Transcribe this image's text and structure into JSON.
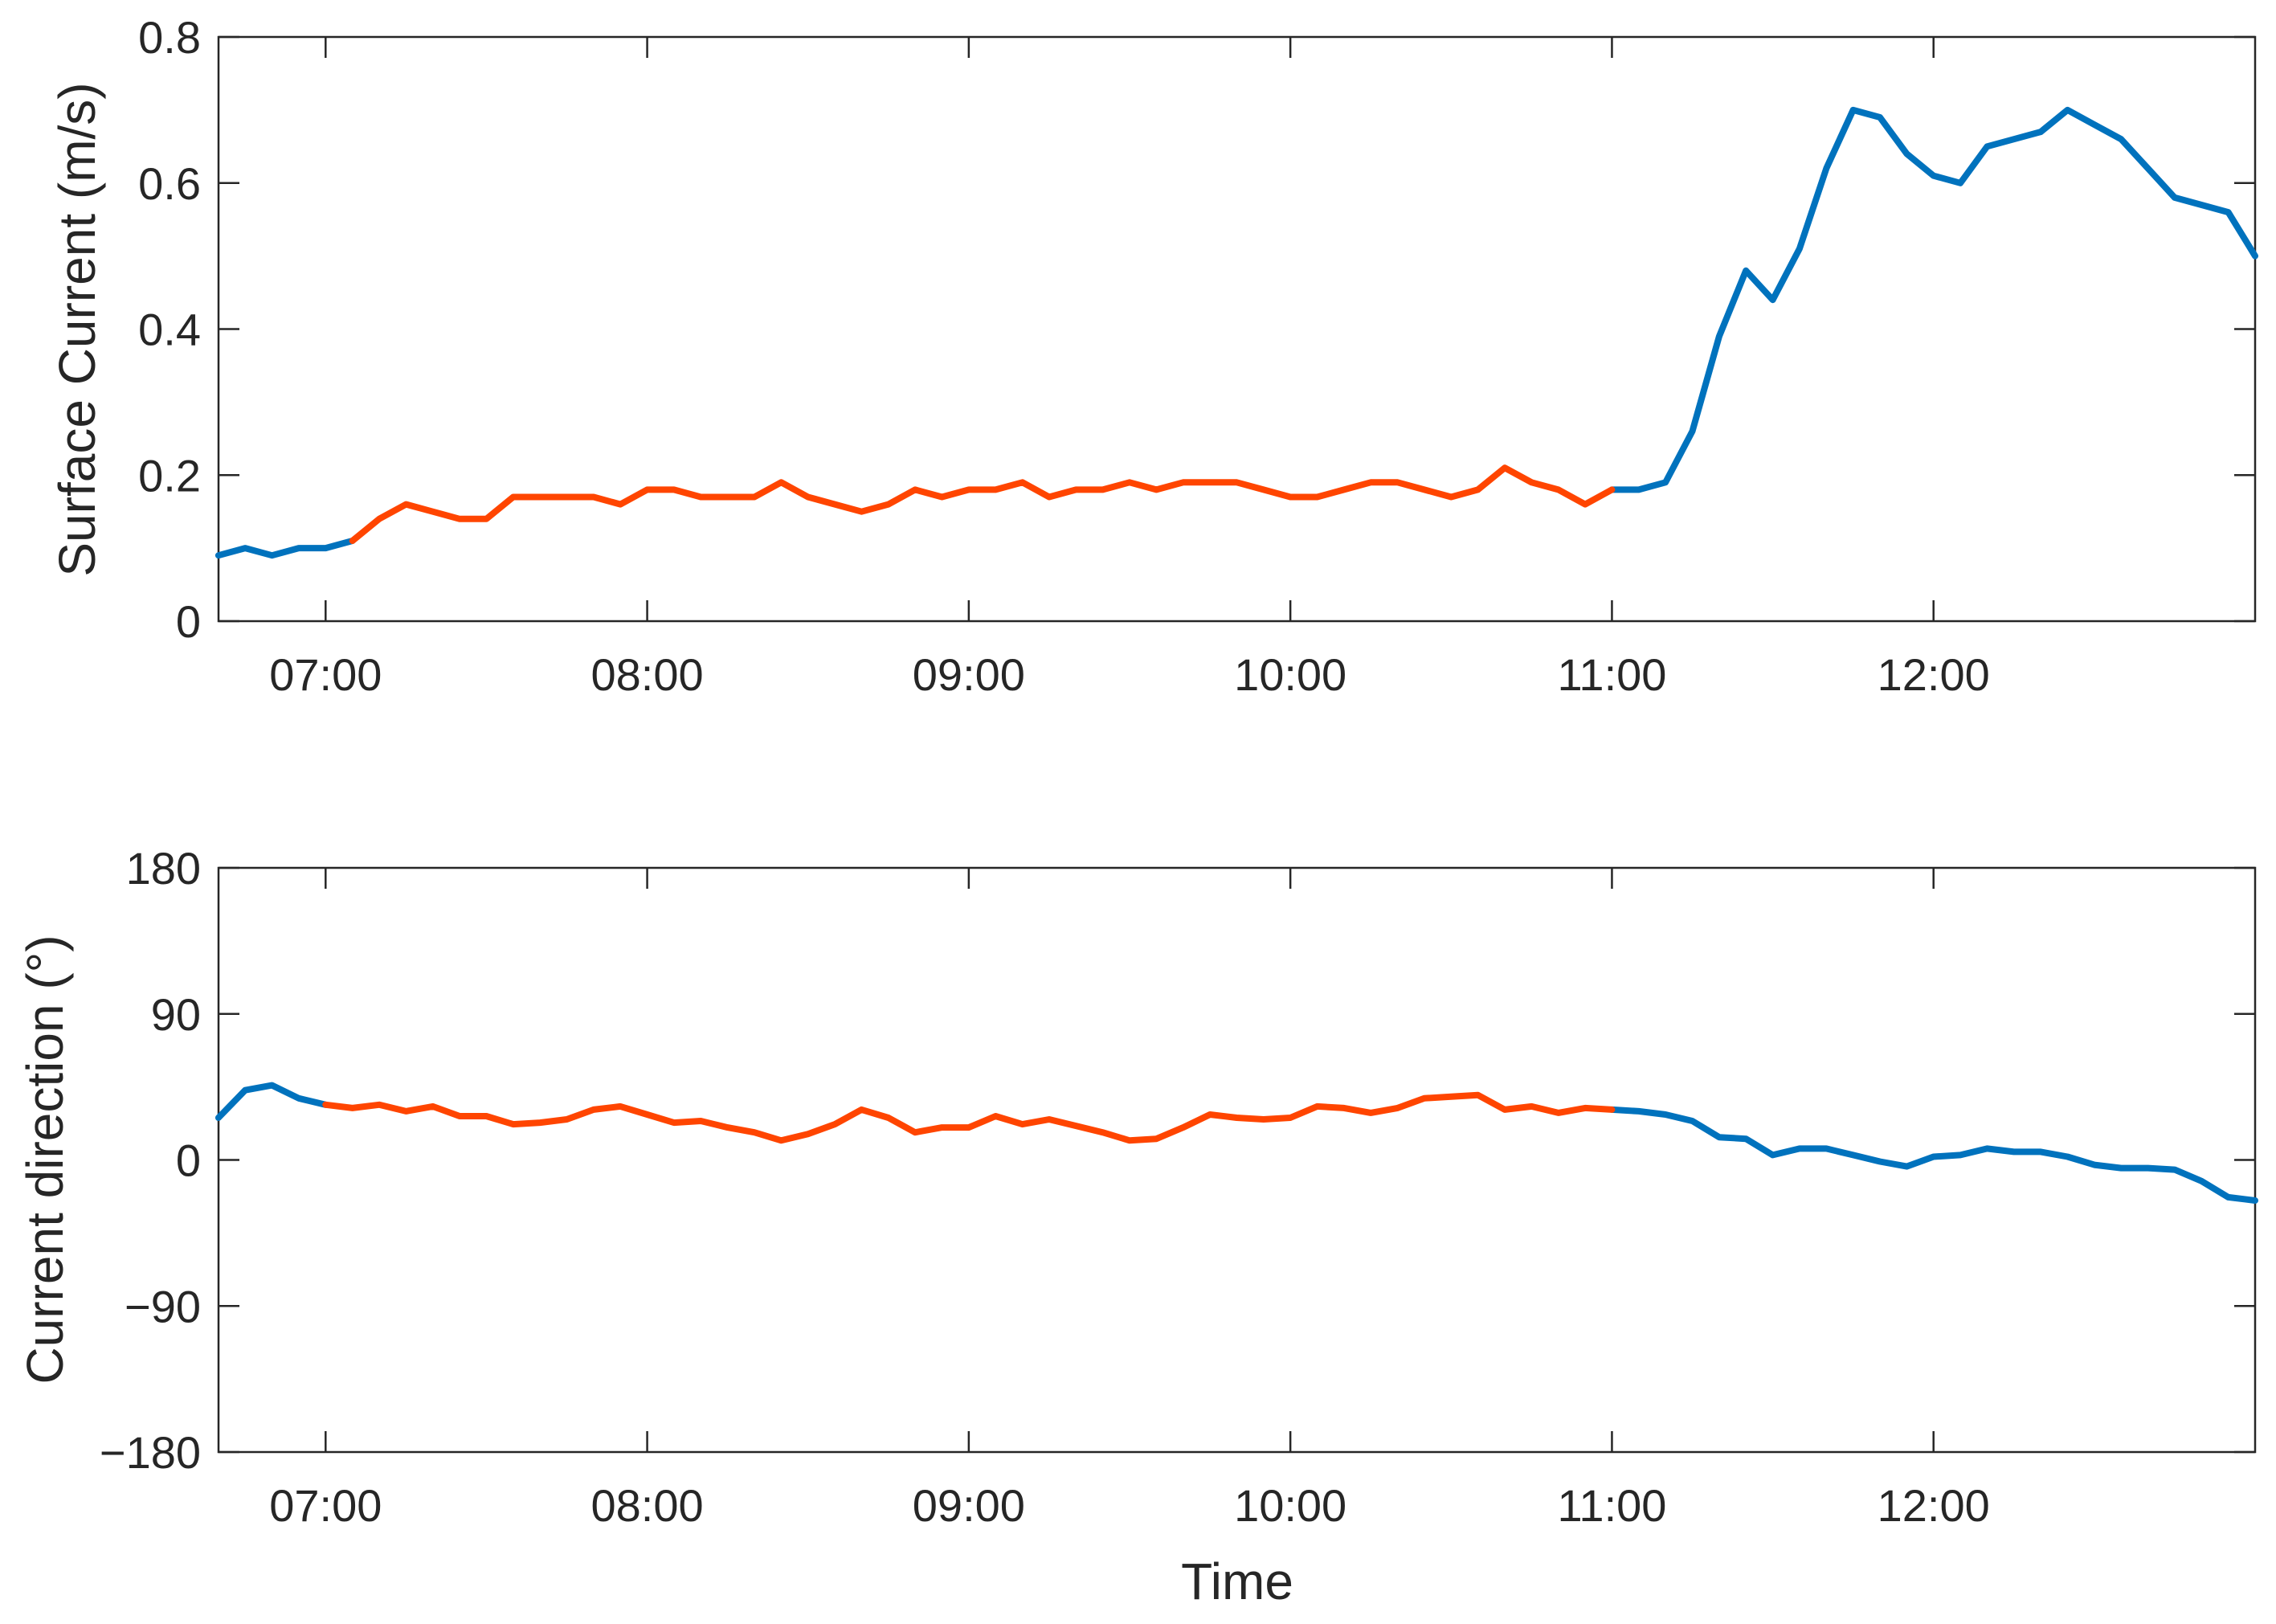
{
  "colors": {
    "outside": "#0072BD",
    "inside": "#FF4500",
    "axis": "#262626"
  },
  "xaxis": {
    "label": "Time",
    "ticks": [
      "07:00",
      "08:00",
      "09:00",
      "10:00",
      "11:00",
      "12:00"
    ],
    "tick_values_h": [
      7,
      8,
      9,
      10,
      11,
      12
    ],
    "xlim_h": [
      6.667,
      13.0
    ]
  },
  "chart_data": [
    {
      "type": "line",
      "ylabel": "Surface Current (m/s)",
      "ylim": [
        0,
        0.8
      ],
      "yticks": [
        0,
        0.2,
        0.4,
        0.6,
        0.8
      ],
      "ytick_labels": [
        "0",
        "0.2",
        "0.4",
        "0.6",
        "0.8"
      ],
      "grid": false,
      "highlight_range": [
        "07:05",
        "11:00"
      ],
      "x": [
        "06:40",
        "06:45",
        "06:50",
        "06:55",
        "07:00",
        "07:05",
        "07:10",
        "07:15",
        "07:20",
        "07:25",
        "07:30",
        "07:35",
        "07:40",
        "07:45",
        "07:50",
        "07:55",
        "08:00",
        "08:05",
        "08:10",
        "08:15",
        "08:20",
        "08:25",
        "08:30",
        "08:35",
        "08:40",
        "08:45",
        "08:50",
        "08:55",
        "09:00",
        "09:05",
        "09:10",
        "09:15",
        "09:20",
        "09:25",
        "09:30",
        "09:35",
        "09:40",
        "09:45",
        "09:50",
        "09:55",
        "10:00",
        "10:05",
        "10:10",
        "10:15",
        "10:20",
        "10:25",
        "10:30",
        "10:35",
        "10:40",
        "10:45",
        "10:50",
        "10:55",
        "11:00",
        "11:05",
        "11:10",
        "11:15",
        "11:20",
        "11:25",
        "11:30",
        "11:35",
        "11:40",
        "11:45",
        "11:50",
        "11:55",
        "12:00",
        "12:05",
        "12:10",
        "12:15",
        "12:20",
        "12:25",
        "12:30",
        "12:35",
        "12:40",
        "12:45",
        "12:50",
        "12:55",
        "13:00"
      ],
      "y": [
        0.09,
        0.1,
        0.09,
        0.1,
        0.1,
        0.11,
        0.14,
        0.16,
        0.15,
        0.14,
        0.14,
        0.17,
        0.17,
        0.17,
        0.17,
        0.16,
        0.18,
        0.18,
        0.17,
        0.17,
        0.17,
        0.19,
        0.17,
        0.16,
        0.15,
        0.16,
        0.18,
        0.17,
        0.18,
        0.18,
        0.19,
        0.17,
        0.18,
        0.18,
        0.19,
        0.18,
        0.19,
        0.19,
        0.19,
        0.18,
        0.17,
        0.17,
        0.18,
        0.19,
        0.19,
        0.18,
        0.17,
        0.18,
        0.21,
        0.19,
        0.18,
        0.16,
        0.18,
        0.18,
        0.19,
        0.26,
        0.39,
        0.48,
        0.44,
        0.51,
        0.62,
        0.7,
        0.69,
        0.64,
        0.61,
        0.6,
        0.65,
        0.66,
        0.67,
        0.7,
        0.68,
        0.66,
        0.62,
        0.58,
        0.57,
        0.56,
        0.5
      ]
    },
    {
      "type": "line",
      "ylabel": "Current direction (°)",
      "ylim": [
        -180,
        180
      ],
      "yticks": [
        -180,
        -90,
        0,
        90,
        180
      ],
      "ytick_labels": [
        "−180",
        "−90",
        "0",
        "90",
        "180"
      ],
      "grid": false,
      "highlight_range": [
        "07:00",
        "11:00"
      ],
      "x": [
        "06:40",
        "06:45",
        "06:50",
        "06:55",
        "07:00",
        "07:05",
        "07:10",
        "07:15",
        "07:20",
        "07:25",
        "07:30",
        "07:35",
        "07:40",
        "07:45",
        "07:50",
        "07:55",
        "08:00",
        "08:05",
        "08:10",
        "08:15",
        "08:20",
        "08:25",
        "08:30",
        "08:35",
        "08:40",
        "08:45",
        "08:50",
        "08:55",
        "09:00",
        "09:05",
        "09:10",
        "09:15",
        "09:20",
        "09:25",
        "09:30",
        "09:35",
        "09:40",
        "09:45",
        "09:50",
        "09:55",
        "10:00",
        "10:05",
        "10:10",
        "10:15",
        "10:20",
        "10:25",
        "10:30",
        "10:35",
        "10:40",
        "10:45",
        "10:50",
        "10:55",
        "11:00",
        "11:05",
        "11:10",
        "11:15",
        "11:20",
        "11:25",
        "11:30",
        "11:35",
        "11:40",
        "11:45",
        "11:50",
        "11:55",
        "12:00",
        "12:05",
        "12:10",
        "12:15",
        "12:20",
        "12:25",
        "12:30",
        "12:35",
        "12:40",
        "12:45",
        "12:50",
        "12:55",
        "13:00"
      ],
      "y": [
        26,
        43,
        46,
        38,
        34,
        32,
        34,
        30,
        33,
        27,
        27,
        22,
        23,
        25,
        31,
        33,
        28,
        23,
        24,
        20,
        17,
        12,
        16,
        22,
        31,
        26,
        17,
        20,
        20,
        27,
        22,
        25,
        21,
        17,
        12,
        13,
        20,
        28,
        26,
        25,
        26,
        33,
        32,
        29,
        32,
        38,
        39,
        40,
        31,
        33,
        29,
        32,
        31,
        30,
        28,
        24,
        14,
        13,
        3,
        7,
        7,
        3,
        -1,
        -4,
        2,
        3,
        7,
        5,
        5,
        2,
        -3,
        -5,
        -5,
        -6,
        -13,
        -23,
        -25
      ]
    }
  ]
}
